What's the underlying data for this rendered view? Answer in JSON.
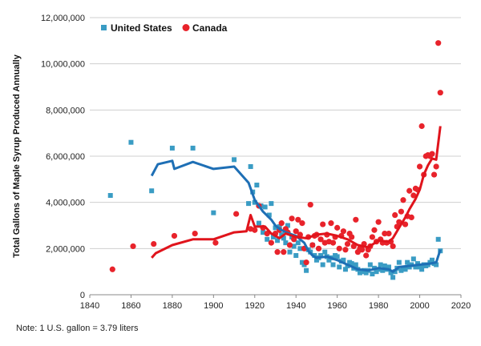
{
  "chart_data": {
    "type": "scatter",
    "ylabel": "Total Gallons of Maple Syrup Produced Annually",
    "xlim": [
      1840,
      2020
    ],
    "ylim": [
      0,
      12000000
    ],
    "x_ticks": [
      "1840",
      "1860",
      "1880",
      "1900",
      "1920",
      "1940",
      "1960",
      "1980",
      "2000",
      "2020"
    ],
    "y_ticks": [
      "0",
      "2,000,000",
      "4,000,000",
      "6,000,000",
      "8,000,000",
      "10,000,000",
      "12,000,000"
    ],
    "legend_position": "top-left",
    "series": [
      {
        "name": "United States",
        "color": "#3a9cc4",
        "marker": "square",
        "points": [
          [
            1850,
            4300000
          ],
          [
            1860,
            6600000
          ],
          [
            1870,
            4500000
          ],
          [
            1880,
            6350000
          ],
          [
            1890,
            6350000
          ],
          [
            1900,
            3550000
          ],
          [
            1910,
            5850000
          ],
          [
            1917,
            3950000
          ],
          [
            1918,
            5550000
          ],
          [
            1919,
            4450000
          ],
          [
            1920,
            4000000
          ],
          [
            1921,
            4750000
          ],
          [
            1922,
            3100000
          ],
          [
            1923,
            3850000
          ],
          [
            1924,
            2700000
          ],
          [
            1925,
            3800000
          ],
          [
            1926,
            2400000
          ],
          [
            1927,
            3450000
          ],
          [
            1928,
            3950000
          ],
          [
            1929,
            2500000
          ],
          [
            1930,
            2900000
          ],
          [
            1931,
            2350000
          ],
          [
            1932,
            2950000
          ],
          [
            1933,
            2600000
          ],
          [
            1934,
            2450000
          ],
          [
            1935,
            2250000
          ],
          [
            1936,
            3000000
          ],
          [
            1937,
            1850000
          ],
          [
            1938,
            2500000
          ],
          [
            1939,
            2100000
          ],
          [
            1940,
            1700000
          ],
          [
            1941,
            2250000
          ],
          [
            1942,
            2000000
          ],
          [
            1943,
            1400000
          ],
          [
            1944,
            1300000
          ],
          [
            1945,
            1050000
          ],
          [
            1946,
            1950000
          ],
          [
            1947,
            1850000
          ],
          [
            1948,
            2150000
          ],
          [
            1949,
            1700000
          ],
          [
            1950,
            1500000
          ],
          [
            1951,
            1600000
          ],
          [
            1952,
            1700000
          ],
          [
            1953,
            1300000
          ],
          [
            1954,
            1850000
          ],
          [
            1955,
            1650000
          ],
          [
            1956,
            1500000
          ],
          [
            1957,
            1600000
          ],
          [
            1958,
            1300000
          ],
          [
            1959,
            1700000
          ],
          [
            1960,
            1650000
          ],
          [
            1961,
            1200000
          ],
          [
            1962,
            1450000
          ],
          [
            1963,
            1500000
          ],
          [
            1964,
            1100000
          ],
          [
            1965,
            1250000
          ],
          [
            1966,
            1400000
          ],
          [
            1967,
            1350000
          ],
          [
            1968,
            1150000
          ],
          [
            1969,
            1300000
          ],
          [
            1970,
            1100000
          ],
          [
            1971,
            950000
          ],
          [
            1972,
            1000000
          ],
          [
            1973,
            1050000
          ],
          [
            1974,
            950000
          ],
          [
            1975,
            1050000
          ],
          [
            1976,
            1300000
          ],
          [
            1977,
            900000
          ],
          [
            1978,
            1150000
          ],
          [
            1979,
            1000000
          ],
          [
            1980,
            1100000
          ],
          [
            1981,
            1300000
          ],
          [
            1982,
            1050000
          ],
          [
            1983,
            1250000
          ],
          [
            1984,
            1100000
          ],
          [
            1985,
            1200000
          ],
          [
            1986,
            950000
          ],
          [
            1987,
            750000
          ],
          [
            1988,
            1000000
          ],
          [
            1989,
            1150000
          ],
          [
            1990,
            1400000
          ],
          [
            1991,
            1050000
          ],
          [
            1992,
            1150000
          ],
          [
            1993,
            1100000
          ],
          [
            1994,
            1400000
          ],
          [
            1995,
            1200000
          ],
          [
            1996,
            1300000
          ],
          [
            1997,
            1550000
          ],
          [
            1998,
            1200000
          ],
          [
            1999,
            1350000
          ],
          [
            2000,
            1200000
          ],
          [
            2001,
            1100000
          ],
          [
            2002,
            1300000
          ],
          [
            2003,
            1250000
          ],
          [
            2004,
            1300000
          ],
          [
            2005,
            1400000
          ],
          [
            2006,
            1500000
          ],
          [
            2007,
            1350000
          ],
          [
            2008,
            1300000
          ],
          [
            2009,
            2400000
          ],
          [
            2010,
            1900000
          ]
        ],
        "trend": [
          [
            1870,
            5150000
          ],
          [
            1873,
            5650000
          ],
          [
            1880,
            5800000
          ],
          [
            1881,
            5450000
          ],
          [
            1890,
            5750000
          ],
          [
            1900,
            5450000
          ],
          [
            1910,
            5550000
          ],
          [
            1917,
            4850000
          ],
          [
            1920,
            4100000
          ],
          [
            1924,
            3600000
          ],
          [
            1928,
            3250000
          ],
          [
            1930,
            3000000
          ],
          [
            1932,
            2850000
          ],
          [
            1935,
            2700000
          ],
          [
            1940,
            2550000
          ],
          [
            1944,
            2250000
          ],
          [
            1946,
            1900000
          ],
          [
            1948,
            1700000
          ],
          [
            1950,
            1600000
          ],
          [
            1955,
            1650000
          ],
          [
            1960,
            1500000
          ],
          [
            1965,
            1300000
          ],
          [
            1970,
            1100000
          ],
          [
            1975,
            1050000
          ],
          [
            1980,
            1150000
          ],
          [
            1985,
            1100000
          ],
          [
            1987,
            1000000
          ],
          [
            1990,
            1200000
          ],
          [
            1995,
            1250000
          ],
          [
            2000,
            1300000
          ],
          [
            2005,
            1350000
          ],
          [
            2008,
            1400000
          ],
          [
            2010,
            1950000
          ]
        ]
      },
      {
        "name": "Canada",
        "color": "#e8232b",
        "marker": "circle",
        "points": [
          [
            1851,
            1100000
          ],
          [
            1861,
            2100000
          ],
          [
            1871,
            2200000
          ],
          [
            1881,
            2550000
          ],
          [
            1891,
            2650000
          ],
          [
            1901,
            2250000
          ],
          [
            1911,
            3500000
          ],
          [
            1918,
            2850000
          ],
          [
            1920,
            2800000
          ],
          [
            1922,
            3850000
          ],
          [
            1924,
            2900000
          ],
          [
            1926,
            2650000
          ],
          [
            1928,
            2250000
          ],
          [
            1930,
            2650000
          ],
          [
            1931,
            1850000
          ],
          [
            1932,
            2800000
          ],
          [
            1933,
            3100000
          ],
          [
            1934,
            1850000
          ],
          [
            1935,
            2850000
          ],
          [
            1936,
            2700000
          ],
          [
            1937,
            2150000
          ],
          [
            1938,
            3300000
          ],
          [
            1939,
            2400000
          ],
          [
            1940,
            2750000
          ],
          [
            1941,
            3250000
          ],
          [
            1942,
            2600000
          ],
          [
            1943,
            3100000
          ],
          [
            1944,
            2000000
          ],
          [
            1945,
            1400000
          ],
          [
            1946,
            2500000
          ],
          [
            1947,
            3900000
          ],
          [
            1948,
            2150000
          ],
          [
            1949,
            2550000
          ],
          [
            1950,
            2600000
          ],
          [
            1951,
            2000000
          ],
          [
            1952,
            2400000
          ],
          [
            1953,
            3050000
          ],
          [
            1954,
            2250000
          ],
          [
            1955,
            2600000
          ],
          [
            1956,
            2300000
          ],
          [
            1957,
            3100000
          ],
          [
            1958,
            2250000
          ],
          [
            1959,
            2500000
          ],
          [
            1960,
            2900000
          ],
          [
            1961,
            2000000
          ],
          [
            1962,
            2550000
          ],
          [
            1963,
            2750000
          ],
          [
            1964,
            1950000
          ],
          [
            1965,
            2200000
          ],
          [
            1966,
            2650000
          ],
          [
            1967,
            2500000
          ],
          [
            1968,
            2100000
          ],
          [
            1969,
            3250000
          ],
          [
            1970,
            1850000
          ],
          [
            1971,
            2000000
          ],
          [
            1972,
            1950000
          ],
          [
            1973,
            2200000
          ],
          [
            1974,
            1700000
          ],
          [
            1975,
            1950000
          ],
          [
            1976,
            2100000
          ],
          [
            1977,
            2500000
          ],
          [
            1978,
            2800000
          ],
          [
            1979,
            2300000
          ],
          [
            1980,
            3150000
          ],
          [
            1981,
            2400000
          ],
          [
            1982,
            2250000
          ],
          [
            1983,
            2650000
          ],
          [
            1984,
            2250000
          ],
          [
            1985,
            2650000
          ],
          [
            1986,
            2300000
          ],
          [
            1987,
            2100000
          ],
          [
            1988,
            3450000
          ],
          [
            1989,
            2950000
          ],
          [
            1990,
            3150000
          ],
          [
            1991,
            3600000
          ],
          [
            1992,
            4100000
          ],
          [
            1993,
            3050000
          ],
          [
            1994,
            3400000
          ],
          [
            1995,
            4500000
          ],
          [
            1996,
            3350000
          ],
          [
            1997,
            4300000
          ],
          [
            1998,
            4600000
          ],
          [
            1999,
            4550000
          ],
          [
            2000,
            5550000
          ],
          [
            2001,
            7300000
          ],
          [
            2002,
            5200000
          ],
          [
            2003,
            6000000
          ],
          [
            2004,
            6050000
          ],
          [
            2005,
            6000000
          ],
          [
            2006,
            6100000
          ],
          [
            2007,
            5200000
          ],
          [
            2008,
            5550000
          ],
          [
            2009,
            10900000
          ],
          [
            2010,
            8750000
          ]
        ],
        "trend": [
          [
            1870,
            1600000
          ],
          [
            1872,
            1800000
          ],
          [
            1880,
            2150000
          ],
          [
            1890,
            2400000
          ],
          [
            1900,
            2400000
          ],
          [
            1910,
            2700000
          ],
          [
            1916,
            2750000
          ],
          [
            1918,
            3450000
          ],
          [
            1920,
            2950000
          ],
          [
            1925,
            2950000
          ],
          [
            1928,
            2650000
          ],
          [
            1932,
            2450000
          ],
          [
            1935,
            2650000
          ],
          [
            1940,
            2500000
          ],
          [
            1945,
            2450000
          ],
          [
            1950,
            2600000
          ],
          [
            1955,
            2650000
          ],
          [
            1960,
            2550000
          ],
          [
            1965,
            2400000
          ],
          [
            1970,
            2150000
          ],
          [
            1975,
            2050000
          ],
          [
            1980,
            2350000
          ],
          [
            1985,
            2300000
          ],
          [
            1987,
            2450000
          ],
          [
            1990,
            2900000
          ],
          [
            1993,
            3350000
          ],
          [
            1995,
            3700000
          ],
          [
            1998,
            4150000
          ],
          [
            2000,
            4550000
          ],
          [
            2002,
            5200000
          ],
          [
            2004,
            5600000
          ],
          [
            2006,
            5900000
          ],
          [
            2008,
            5850000
          ],
          [
            2010,
            7300000
          ]
        ]
      }
    ]
  },
  "footer": {
    "note": "Note: 1 U.S. gallon = 3.79 liters"
  }
}
